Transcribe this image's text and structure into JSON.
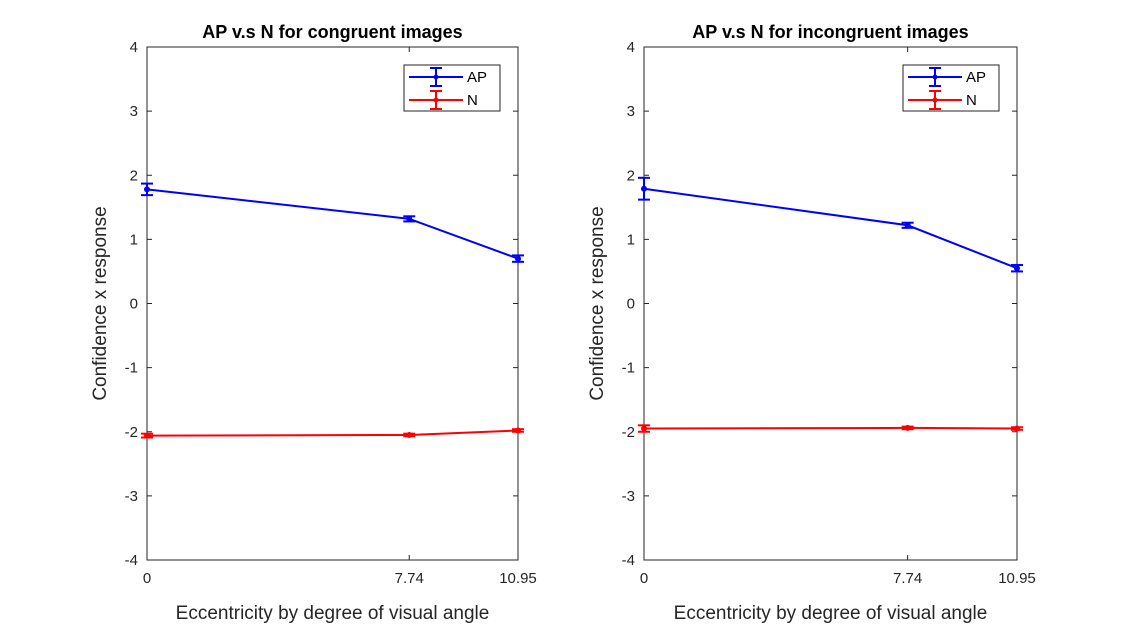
{
  "chart_data": [
    {
      "type": "line",
      "title": "AP v.s N for congruent images",
      "xlabel": "Eccentricity by degree of visual angle",
      "ylabel": "Confidence x response",
      "x": [
        0,
        7.74,
        10.95
      ],
      "x_tick_labels": [
        "0",
        "7.74",
        "10.95"
      ],
      "xlim": [
        0,
        10.95
      ],
      "ylim": [
        -4,
        4
      ],
      "y_ticks": [
        -4,
        -3,
        -2,
        -1,
        0,
        1,
        2,
        3,
        4
      ],
      "y_tick_labels": [
        "-4",
        "-3",
        "-2",
        "-1",
        "0",
        "1",
        "2",
        "3",
        "4"
      ],
      "grid": false,
      "legend_placement": "top-right",
      "series": [
        {
          "name": "AP",
          "color": "#0000ff",
          "values": [
            1.78,
            1.32,
            0.7
          ],
          "errors": [
            0.09,
            0.04,
            0.05
          ]
        },
        {
          "name": "N",
          "color": "#ff0000",
          "values": [
            -2.06,
            -2.05,
            -1.98
          ],
          "errors": [
            0.03,
            0.02,
            0.02
          ]
        }
      ]
    },
    {
      "type": "line",
      "title": "AP v.s N for incongruent images",
      "xlabel": "Eccentricity by degree of visual angle",
      "ylabel": "Confidence x response",
      "x": [
        0,
        7.74,
        10.95
      ],
      "x_tick_labels": [
        "0",
        "7.74",
        "10.95"
      ],
      "xlim": [
        0,
        10.95
      ],
      "ylim": [
        -4,
        4
      ],
      "y_ticks": [
        -4,
        -3,
        -2,
        -1,
        0,
        1,
        2,
        3,
        4
      ],
      "y_tick_labels": [
        "-4",
        "-3",
        "-2",
        "-1",
        "0",
        "1",
        "2",
        "3",
        "4"
      ],
      "grid": false,
      "legend_placement": "top-right",
      "series": [
        {
          "name": "AP",
          "color": "#0000ff",
          "values": [
            1.79,
            1.22,
            0.55
          ],
          "errors": [
            0.17,
            0.04,
            0.05
          ]
        },
        {
          "name": "N",
          "color": "#ff0000",
          "values": [
            -1.95,
            -1.94,
            -1.95
          ],
          "errors": [
            0.05,
            0.02,
            0.02
          ]
        }
      ]
    }
  ]
}
